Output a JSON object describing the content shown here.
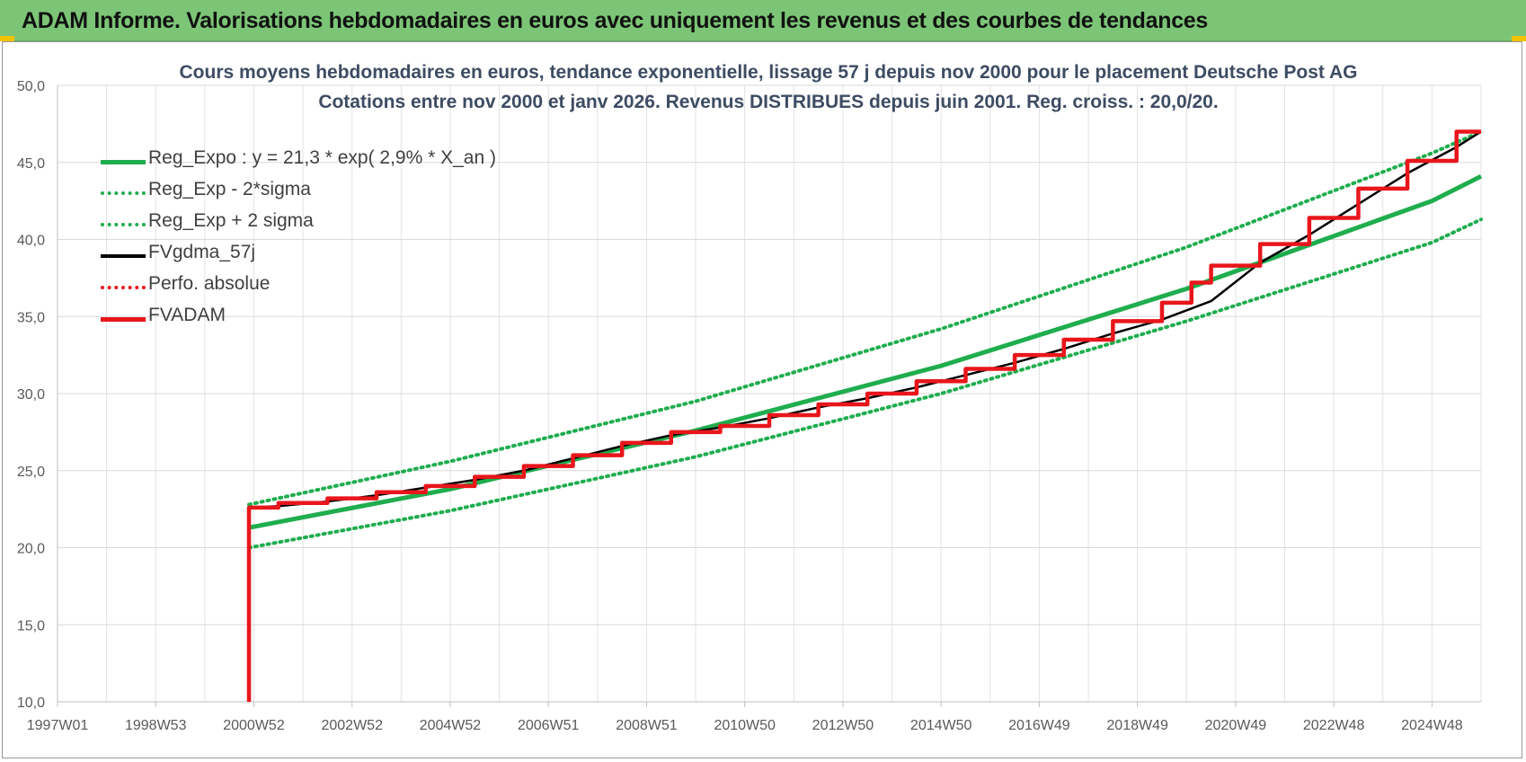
{
  "banner": {
    "title": "ADAM Informe. Valorisations hebdomadaires en euros avec uniquement les revenus et des courbes de tendances"
  },
  "chart_data": {
    "type": "line",
    "title": "Cours moyens hebdomadaires en euros, tendance exponentielle, lissage 57 j depuis nov 2000 pour le placement Deutsche Post AG",
    "subtitle": "Cotations entre nov 2000 et janv 2026. Revenus DISTRIBUES depuis juin 2001. Reg. croiss. : 20,0/20.",
    "xlabel": "",
    "ylabel": "",
    "ylim": [
      10,
      50
    ],
    "yticks": [
      "10,0",
      "15,0",
      "20,0",
      "25,0",
      "30,0",
      "35,0",
      "40,0",
      "45,0",
      "50,0"
    ],
    "xlim": [
      1997.0,
      2026.0
    ],
    "xtick_labels": [
      "1997W01",
      "1998W53",
      "2000W52",
      "2002W52",
      "2004W52",
      "2006W51",
      "2008W51",
      "2010W50",
      "2012W50",
      "2014W50",
      "2016W49",
      "2018W49",
      "2020W49",
      "2022W48",
      "2024W48"
    ],
    "xtick_positions": [
      1997.0,
      1999.0,
      2001.0,
      2003.0,
      2005.0,
      2007.0,
      2009.0,
      2011.0,
      2013.0,
      2015.0,
      2017.0,
      2019.0,
      2021.0,
      2023.0,
      2025.0
    ],
    "grid": true,
    "legend_position": "top-left",
    "series": [
      {
        "name": "Reg_Expo : y = 21,3 * exp( 2,9% *  X_an )",
        "color": "#1fad4e",
        "style": "solid",
        "x": [
          2000.9,
          2005.0,
          2010.0,
          2015.0,
          2020.0,
          2025.0,
          2026.0
        ],
        "values": [
          21.3,
          23.8,
          27.6,
          31.8,
          36.8,
          42.5,
          44.1
        ]
      },
      {
        "name": "Reg_Exp - 2*sigma",
        "color": "#1fad4e",
        "style": "dotted",
        "x": [
          2000.9,
          2005.0,
          2010.0,
          2015.0,
          2020.0,
          2025.0,
          2026.0
        ],
        "values": [
          20.0,
          22.4,
          25.9,
          30.0,
          34.7,
          39.8,
          41.3
        ]
      },
      {
        "name": "Reg_Exp + 2 sigma",
        "color": "#1fad4e",
        "style": "dotted",
        "x": [
          2000.9,
          2005.0,
          2010.0,
          2015.0,
          2020.0,
          2025.0,
          2026.0
        ],
        "values": [
          22.8,
          25.6,
          29.5,
          34.2,
          39.5,
          45.6,
          47.0
        ]
      },
      {
        "name": "FVgdma_57j",
        "color": "#000000",
        "style": "solid",
        "x": [
          2000.9,
          2000.9,
          2001.5,
          2002.5,
          2003.5,
          2004.5,
          2005.5,
          2006.5,
          2007.5,
          2008.5,
          2009.5,
          2010.5,
          2011.5,
          2012.5,
          2013.5,
          2014.5,
          2015.5,
          2016.5,
          2017.5,
          2018.5,
          2019.5,
          2020.5,
          2021.5,
          2022.5,
          2023.5,
          2024.5,
          2025.5,
          2026.0
        ],
        "values": [
          10.0,
          22.6,
          22.7,
          23.0,
          23.4,
          23.9,
          24.4,
          25.0,
          25.8,
          26.6,
          27.3,
          27.8,
          28.4,
          29.1,
          29.7,
          30.4,
          31.2,
          32.0,
          32.9,
          33.9,
          34.8,
          36.0,
          38.5,
          40.3,
          42.3,
          44.3,
          46.0,
          47.0
        ]
      },
      {
        "name": "Perfo. absolue",
        "color": "#e8161b",
        "style": "dotted",
        "x": [],
        "values": []
      },
      {
        "name": "FVADAM",
        "color": "#e8161b",
        "style": "step",
        "x": [
          2000.9,
          2000.9,
          2001.5,
          2002.5,
          2003.5,
          2004.5,
          2005.5,
          2006.5,
          2007.5,
          2008.5,
          2009.5,
          2010.5,
          2011.5,
          2012.5,
          2013.5,
          2014.5,
          2015.5,
          2016.5,
          2017.5,
          2018.5,
          2019.5,
          2020.1,
          2020.5,
          2021.5,
          2022.5,
          2023.5,
          2024.5,
          2025.5,
          2026.0
        ],
        "values": [
          10.0,
          22.6,
          22.9,
          23.2,
          23.6,
          24.0,
          24.6,
          25.3,
          26.0,
          26.8,
          27.5,
          27.9,
          28.6,
          29.3,
          30.0,
          30.8,
          31.6,
          32.5,
          33.5,
          34.7,
          35.9,
          37.2,
          38.3,
          39.7,
          41.4,
          43.3,
          45.1,
          47.0,
          47.0
        ]
      }
    ]
  }
}
